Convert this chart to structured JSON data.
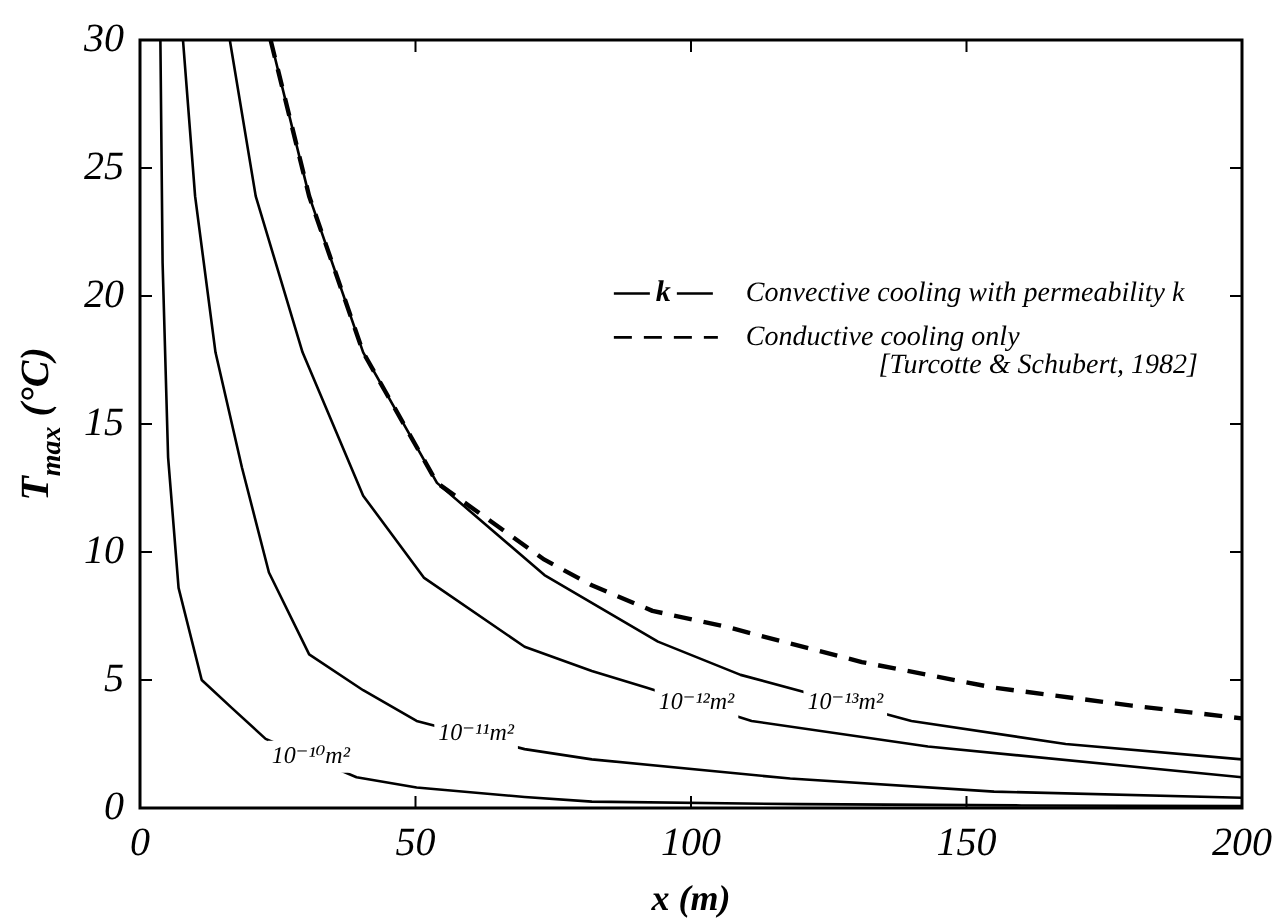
{
  "chart_data": {
    "type": "line",
    "xlabel": "x (m)",
    "ylabel": "T$_{max}$ (°C)",
    "xlim": [
      0,
      200
    ],
    "xticks": [
      0,
      50,
      100,
      150,
      200
    ],
    "ylim": [
      0,
      30
    ],
    "yticks": [
      0,
      5,
      10,
      15,
      20,
      25,
      30
    ],
    "grid": false,
    "legend": "right",
    "marker": "none",
    "series": [
      {
        "color": "#000000",
        "line_style": "solid",
        "x": [
          3.7,
          4.1,
          5.1,
          7,
          11.2,
          16.7,
          22.8,
          39.3,
          50.2,
          69.8,
          82,
          120,
          160,
          200
        ],
        "values": [
          30,
          21.3,
          13.7,
          8.6,
          5.0,
          3.9,
          2.7,
          1.2,
          0.8,
          0.43,
          0.25,
          0.15,
          0.1,
          0.08
        ]
      },
      {
        "color": "#000000",
        "line_style": "solid",
        "x": [
          7.8,
          10,
          13.7,
          18.5,
          23.4,
          30.7,
          40.5,
          50.2,
          69.8,
          82,
          118,
          155,
          200
        ],
        "values": [
          30,
          23.9,
          17.8,
          13.3,
          9.2,
          6.0,
          4.6,
          3.4,
          2.3,
          1.9,
          1.15,
          0.64,
          0.4
        ]
      },
      {
        "color": "#000000",
        "line_style": "solid",
        "x": [
          16.3,
          21,
          29.5,
          40.5,
          51.5,
          69.8,
          82,
          92,
          111,
          143,
          200
        ],
        "values": [
          30,
          23.9,
          17.8,
          12.2,
          9.0,
          6.3,
          5.35,
          4.7,
          3.4,
          2.4,
          1.2
        ]
      },
      {
        "color": "#000000",
        "line_style": "solid",
        "x": [
          23.7,
          30.7,
          40.5,
          53.9,
          73.4,
          94,
          109,
          140,
          168,
          200
        ],
        "values": [
          30,
          23.9,
          17.8,
          12.7,
          9.1,
          6.5,
          5.2,
          3.4,
          2.5,
          1.9
        ]
      },
      {
        "name": "Conductive cooling only",
        "color": "#000000",
        "line_style": "dashed",
        "x": [
          23.7,
          30.7,
          40.5,
          53.9,
          73.4,
          82,
          93,
          106,
          131,
          155,
          180,
          200
        ],
        "values": [
          30,
          23.9,
          17.8,
          12.7,
          9.7,
          8.7,
          7.7,
          7.1,
          5.7,
          4.7,
          4.0,
          3.5
        ]
      }
    ],
    "annotations": [
      {
        "text": "10⁻¹⁰m²",
        "x": 31,
        "y": 2.0
      },
      {
        "text": "10⁻¹¹m²",
        "x": 61,
        "y": 2.9
      },
      {
        "text": "10⁻¹²m²",
        "x": 101,
        "y": 4.1
      },
      {
        "text": "10⁻¹³m²",
        "x": 128,
        "y": 4.1
      },
      "k",
      "Convective cooling with permeability k",
      "[Turcotte & Schubert, 1982]"
    ]
  }
}
